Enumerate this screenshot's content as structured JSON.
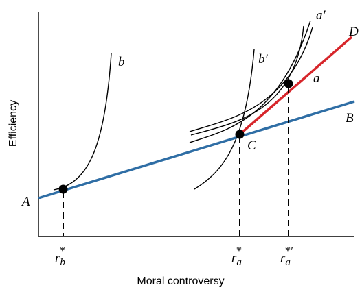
{
  "axes": {
    "y_label": "Efficiency",
    "x_label": "Moral controversy"
  },
  "lines": {
    "blue": "B",
    "red": "D"
  },
  "points": {
    "A": "A",
    "C": "C"
  },
  "curves": {
    "a": "a",
    "a_prime": "a′",
    "b": "b",
    "b_prime": "b′"
  },
  "x_markers": [
    {
      "base": "r",
      "sub": "b",
      "sup": "*"
    },
    {
      "base": "r",
      "sub": "a",
      "sup": "*"
    },
    {
      "base": "r",
      "sub": "a",
      "sup": "*′"
    }
  ]
}
